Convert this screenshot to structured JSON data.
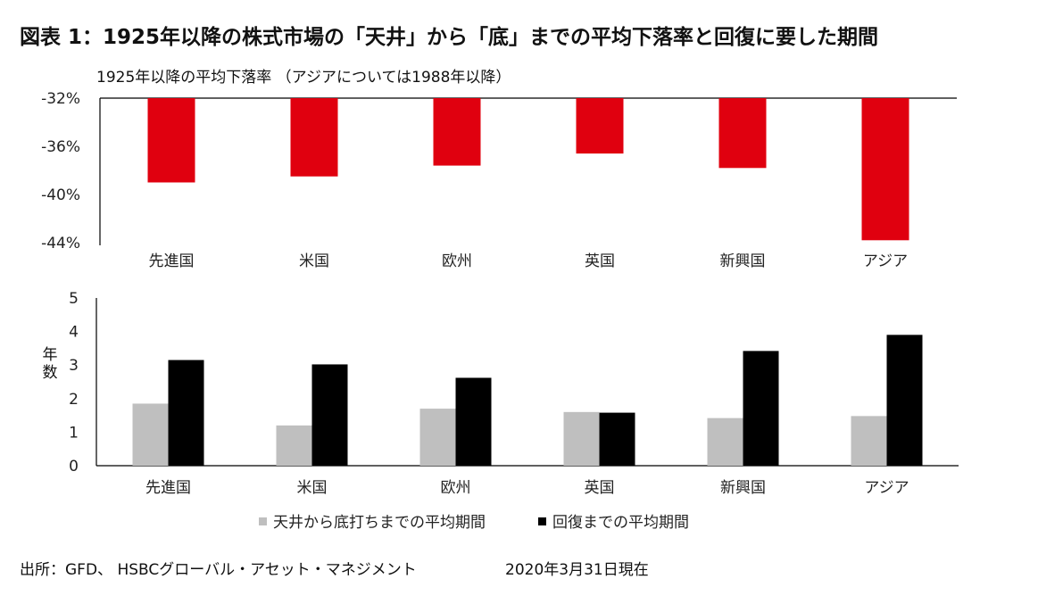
{
  "title": "図表 1：1925年以降の株式市場の「天井」から「底」までの平均下落率と回復に要した期間",
  "colors": {
    "drawdown": "#e0000f",
    "bottom_period": "#bfbfbf",
    "recovery_period": "#000000"
  },
  "chart_data": [
    {
      "type": "bar",
      "subtitle": "1925年以降の平均下落率 （アジアについては1988年以降）",
      "categories": [
        "先進国",
        "米国",
        "欧州",
        "英国",
        "新興国",
        "アジア"
      ],
      "values": [
        -39.0,
        -38.5,
        -37.6,
        -36.6,
        -37.8,
        -43.8
      ],
      "ylim": [
        -44,
        -32
      ],
      "yticks": [
        -32,
        -36,
        -40,
        -44
      ],
      "ytick_labels": [
        "-32%",
        "-36%",
        "-40%",
        "-44%"
      ],
      "grid": false
    },
    {
      "type": "bar",
      "ylabel": "年数",
      "categories": [
        "先進国",
        "米国",
        "欧州",
        "英国",
        "新興国",
        "アジア"
      ],
      "series": [
        {
          "name": "天井から底打ちまでの平均期間",
          "values": [
            1.85,
            1.2,
            1.7,
            1.6,
            1.42,
            1.48
          ]
        },
        {
          "name": "回復までの平均期間",
          "values": [
            3.15,
            3.02,
            2.62,
            1.58,
            3.42,
            3.9
          ]
        }
      ],
      "ylim": [
        0,
        5
      ],
      "yticks": [
        0,
        1,
        2,
        3,
        4,
        5
      ],
      "legend": "bottom",
      "grid": false
    }
  ],
  "source": "出所：GFD、 HSBCグローバル・アセット・マネジメント",
  "date": "2020年3月31日現在"
}
